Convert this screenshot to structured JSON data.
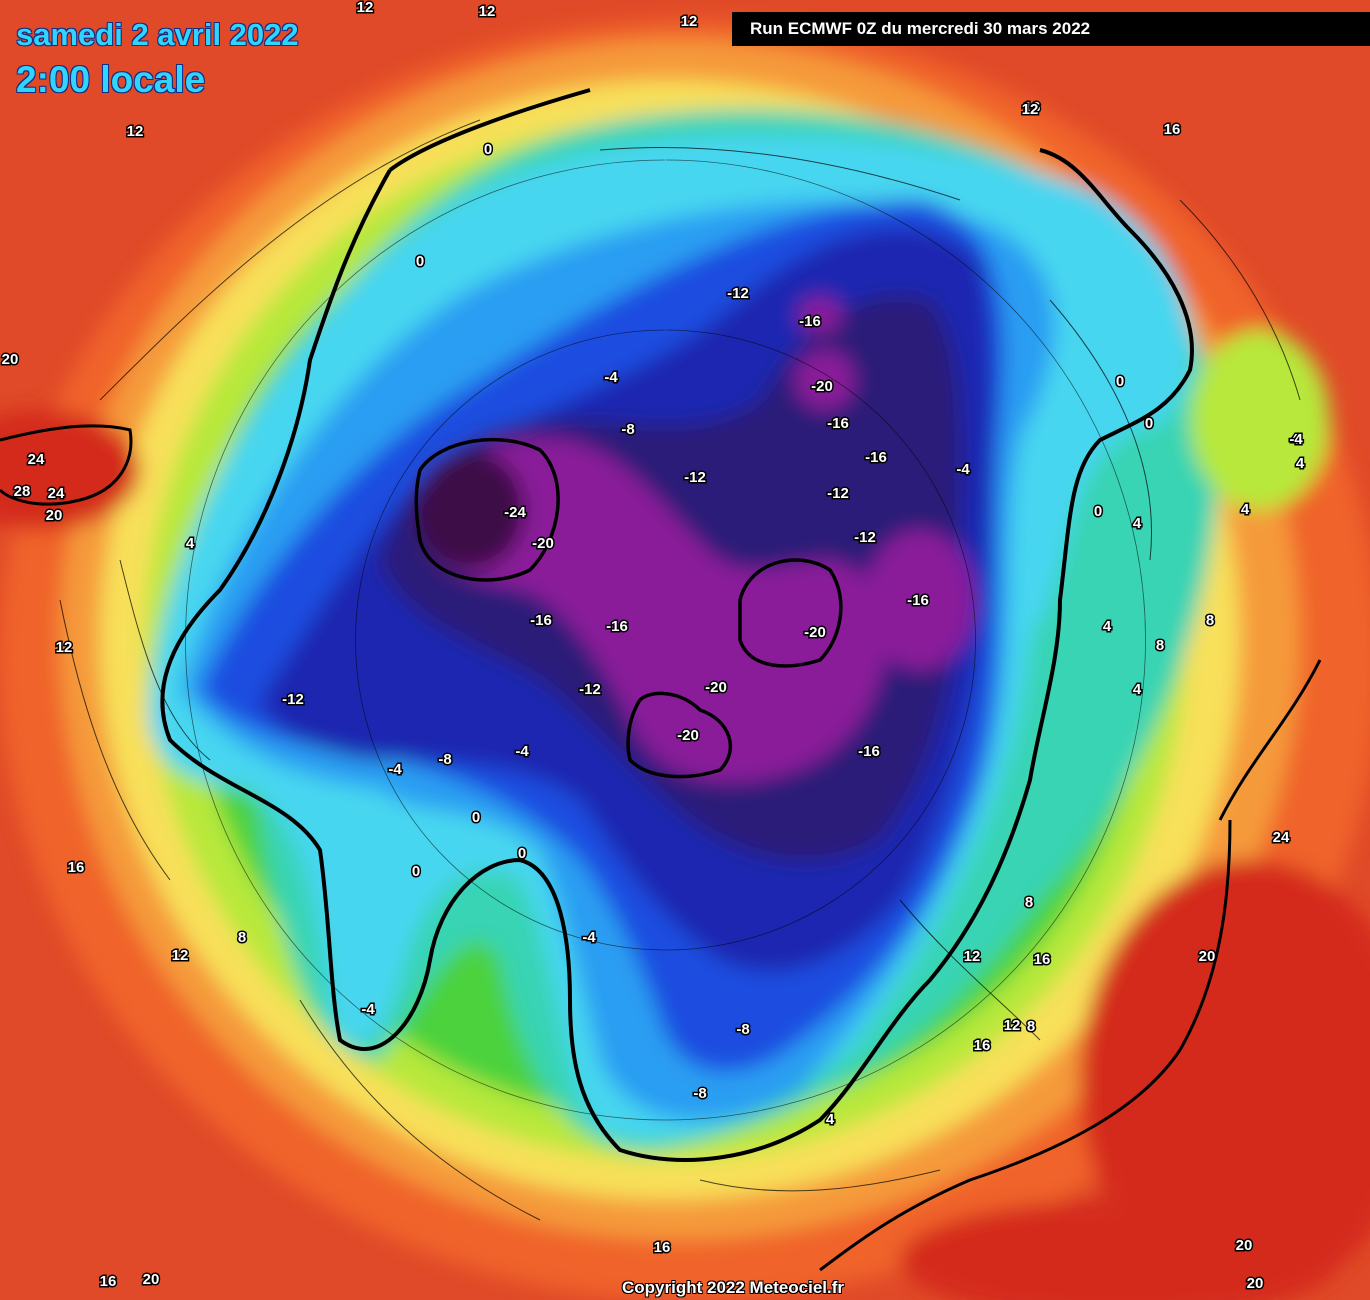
{
  "header": {
    "date": "samedi 2 avril 2022",
    "time": "2:00 locale",
    "run": "Run ECMWF 0Z du mercredi 30 mars 2022"
  },
  "footer": {
    "copyright": "Copyright 2022 Meteociel.fr"
  },
  "map": {
    "colors": {
      "hot": "#d42a1a",
      "warm": "#f0642a",
      "orange": "#f59a3a",
      "yellow": "#f8e05a",
      "lime": "#b7e83a",
      "green": "#4cd23c",
      "teal": "#38d4b4",
      "cyan": "#46d6f0",
      "skyblue": "#2a9ef2",
      "blue": "#1d4ee0",
      "navy": "#1a28b0",
      "indigo": "#2c1a78",
      "purple": "#8a1a9a",
      "darkpurple": "#3c0c46"
    },
    "contour_labels": [
      "12",
      "12",
      "12",
      "12",
      "16",
      "12",
      "16",
      "20",
      "24",
      "28",
      "24",
      "20",
      "0",
      "0",
      "-12",
      "-16",
      "-20",
      "-16",
      "-16",
      "-4",
      "-8",
      "-12",
      "-12",
      "-12",
      "-4",
      "-24",
      "-20",
      "-16",
      "-16",
      "-12",
      "-20",
      "-16",
      "-20",
      "-20",
      "-16",
      "0",
      "0",
      "4",
      "4",
      "0",
      "4",
      "4",
      "4",
      "8",
      "8",
      "4",
      "4",
      "12",
      "-12",
      "-8",
      "-4",
      "-4",
      "0",
      "0",
      "0",
      "16",
      "8",
      "12",
      "-4",
      "-4",
      "-8",
      "-8",
      "4",
      "8",
      "12",
      "16",
      "12",
      "8",
      "16",
      "20",
      "24",
      "20",
      "16",
      "16",
      "20",
      "20",
      "0",
      "0",
      "-4",
      "-4"
    ]
  }
}
